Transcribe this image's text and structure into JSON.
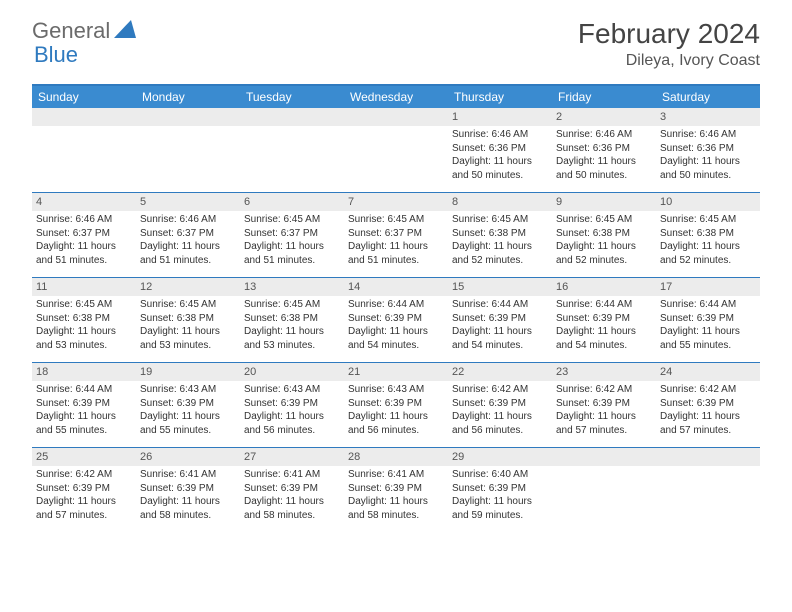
{
  "logo": {
    "general": "General",
    "blue": "Blue"
  },
  "title": "February 2024",
  "location": "Dileya, Ivory Coast",
  "colors": {
    "header_bg": "#3a8bd0",
    "border": "#2f7abf",
    "daynum_bg": "#ececec",
    "text": "#333333",
    "logo_gray": "#6b6b6b",
    "logo_blue": "#2f7abf"
  },
  "dayNames": [
    "Sunday",
    "Monday",
    "Tuesday",
    "Wednesday",
    "Thursday",
    "Friday",
    "Saturday"
  ],
  "weeks": [
    [
      {
        "num": "",
        "sunrise": "",
        "sunset": "",
        "daylight": ""
      },
      {
        "num": "",
        "sunrise": "",
        "sunset": "",
        "daylight": ""
      },
      {
        "num": "",
        "sunrise": "",
        "sunset": "",
        "daylight": ""
      },
      {
        "num": "",
        "sunrise": "",
        "sunset": "",
        "daylight": ""
      },
      {
        "num": "1",
        "sunrise": "Sunrise: 6:46 AM",
        "sunset": "Sunset: 6:36 PM",
        "daylight": "Daylight: 11 hours and 50 minutes."
      },
      {
        "num": "2",
        "sunrise": "Sunrise: 6:46 AM",
        "sunset": "Sunset: 6:36 PM",
        "daylight": "Daylight: 11 hours and 50 minutes."
      },
      {
        "num": "3",
        "sunrise": "Sunrise: 6:46 AM",
        "sunset": "Sunset: 6:36 PM",
        "daylight": "Daylight: 11 hours and 50 minutes."
      }
    ],
    [
      {
        "num": "4",
        "sunrise": "Sunrise: 6:46 AM",
        "sunset": "Sunset: 6:37 PM",
        "daylight": "Daylight: 11 hours and 51 minutes."
      },
      {
        "num": "5",
        "sunrise": "Sunrise: 6:46 AM",
        "sunset": "Sunset: 6:37 PM",
        "daylight": "Daylight: 11 hours and 51 minutes."
      },
      {
        "num": "6",
        "sunrise": "Sunrise: 6:45 AM",
        "sunset": "Sunset: 6:37 PM",
        "daylight": "Daylight: 11 hours and 51 minutes."
      },
      {
        "num": "7",
        "sunrise": "Sunrise: 6:45 AM",
        "sunset": "Sunset: 6:37 PM",
        "daylight": "Daylight: 11 hours and 51 minutes."
      },
      {
        "num": "8",
        "sunrise": "Sunrise: 6:45 AM",
        "sunset": "Sunset: 6:38 PM",
        "daylight": "Daylight: 11 hours and 52 minutes."
      },
      {
        "num": "9",
        "sunrise": "Sunrise: 6:45 AM",
        "sunset": "Sunset: 6:38 PM",
        "daylight": "Daylight: 11 hours and 52 minutes."
      },
      {
        "num": "10",
        "sunrise": "Sunrise: 6:45 AM",
        "sunset": "Sunset: 6:38 PM",
        "daylight": "Daylight: 11 hours and 52 minutes."
      }
    ],
    [
      {
        "num": "11",
        "sunrise": "Sunrise: 6:45 AM",
        "sunset": "Sunset: 6:38 PM",
        "daylight": "Daylight: 11 hours and 53 minutes."
      },
      {
        "num": "12",
        "sunrise": "Sunrise: 6:45 AM",
        "sunset": "Sunset: 6:38 PM",
        "daylight": "Daylight: 11 hours and 53 minutes."
      },
      {
        "num": "13",
        "sunrise": "Sunrise: 6:45 AM",
        "sunset": "Sunset: 6:38 PM",
        "daylight": "Daylight: 11 hours and 53 minutes."
      },
      {
        "num": "14",
        "sunrise": "Sunrise: 6:44 AM",
        "sunset": "Sunset: 6:39 PM",
        "daylight": "Daylight: 11 hours and 54 minutes."
      },
      {
        "num": "15",
        "sunrise": "Sunrise: 6:44 AM",
        "sunset": "Sunset: 6:39 PM",
        "daylight": "Daylight: 11 hours and 54 minutes."
      },
      {
        "num": "16",
        "sunrise": "Sunrise: 6:44 AM",
        "sunset": "Sunset: 6:39 PM",
        "daylight": "Daylight: 11 hours and 54 minutes."
      },
      {
        "num": "17",
        "sunrise": "Sunrise: 6:44 AM",
        "sunset": "Sunset: 6:39 PM",
        "daylight": "Daylight: 11 hours and 55 minutes."
      }
    ],
    [
      {
        "num": "18",
        "sunrise": "Sunrise: 6:44 AM",
        "sunset": "Sunset: 6:39 PM",
        "daylight": "Daylight: 11 hours and 55 minutes."
      },
      {
        "num": "19",
        "sunrise": "Sunrise: 6:43 AM",
        "sunset": "Sunset: 6:39 PM",
        "daylight": "Daylight: 11 hours and 55 minutes."
      },
      {
        "num": "20",
        "sunrise": "Sunrise: 6:43 AM",
        "sunset": "Sunset: 6:39 PM",
        "daylight": "Daylight: 11 hours and 56 minutes."
      },
      {
        "num": "21",
        "sunrise": "Sunrise: 6:43 AM",
        "sunset": "Sunset: 6:39 PM",
        "daylight": "Daylight: 11 hours and 56 minutes."
      },
      {
        "num": "22",
        "sunrise": "Sunrise: 6:42 AM",
        "sunset": "Sunset: 6:39 PM",
        "daylight": "Daylight: 11 hours and 56 minutes."
      },
      {
        "num": "23",
        "sunrise": "Sunrise: 6:42 AM",
        "sunset": "Sunset: 6:39 PM",
        "daylight": "Daylight: 11 hours and 57 minutes."
      },
      {
        "num": "24",
        "sunrise": "Sunrise: 6:42 AM",
        "sunset": "Sunset: 6:39 PM",
        "daylight": "Daylight: 11 hours and 57 minutes."
      }
    ],
    [
      {
        "num": "25",
        "sunrise": "Sunrise: 6:42 AM",
        "sunset": "Sunset: 6:39 PM",
        "daylight": "Daylight: 11 hours and 57 minutes."
      },
      {
        "num": "26",
        "sunrise": "Sunrise: 6:41 AM",
        "sunset": "Sunset: 6:39 PM",
        "daylight": "Daylight: 11 hours and 58 minutes."
      },
      {
        "num": "27",
        "sunrise": "Sunrise: 6:41 AM",
        "sunset": "Sunset: 6:39 PM",
        "daylight": "Daylight: 11 hours and 58 minutes."
      },
      {
        "num": "28",
        "sunrise": "Sunrise: 6:41 AM",
        "sunset": "Sunset: 6:39 PM",
        "daylight": "Daylight: 11 hours and 58 minutes."
      },
      {
        "num": "29",
        "sunrise": "Sunrise: 6:40 AM",
        "sunset": "Sunset: 6:39 PM",
        "daylight": "Daylight: 11 hours and 59 minutes."
      },
      {
        "num": "",
        "sunrise": "",
        "sunset": "",
        "daylight": ""
      },
      {
        "num": "",
        "sunrise": "",
        "sunset": "",
        "daylight": ""
      }
    ]
  ]
}
